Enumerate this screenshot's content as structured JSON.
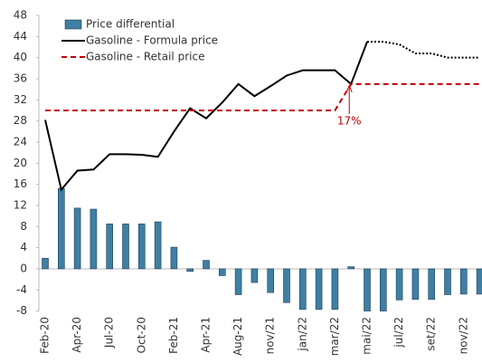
{
  "chart_data": {
    "type": "bar_line",
    "categories": [
      "Feb-20",
      null,
      "Apr-20",
      null,
      "Jul-20",
      null,
      "Oct-20",
      null,
      "Feb-21",
      null,
      "Apr-21",
      null,
      "Aug-21",
      null,
      "nov/21",
      null,
      "jan/22",
      null,
      "mar/22",
      null,
      "mai/22",
      null,
      "jul/22",
      null,
      "set/22",
      null,
      "nov/22",
      null
    ],
    "series": [
      {
        "name": "Price differential",
        "type": "bar",
        "color": "#3f7fa3",
        "values": [
          2,
          15.2,
          11.5,
          11.3,
          8.5,
          8.5,
          8.5,
          8.9,
          4.1,
          -0.5,
          1.6,
          -1.3,
          -4.9,
          -2.6,
          -4.5,
          -6.4,
          -7.7,
          -7.7,
          -7.7,
          0.4,
          -8,
          -8,
          -5.9,
          -5.8,
          -5.8,
          -4.9,
          -4.8,
          -4.8
        ]
      },
      {
        "name": "Gasoline - Formula price",
        "type": "line",
        "color": "#000000",
        "dotted_from": 20,
        "values": [
          28.2,
          15,
          18.6,
          18.8,
          21.7,
          21.7,
          21.6,
          21.2,
          26,
          30.4,
          28.5,
          31.5,
          35,
          32.7,
          34.6,
          36.6,
          37.6,
          37.6,
          37.6,
          35,
          43,
          43,
          42.5,
          40.8,
          40.8,
          40,
          40,
          40
        ]
      },
      {
        "name": "Gasoline - Retail price",
        "type": "line",
        "color": "#c00000",
        "dashed": true,
        "values": [
          30,
          30,
          30,
          30,
          30,
          30,
          30,
          30,
          30,
          30,
          30,
          30,
          30,
          30,
          30,
          30,
          30,
          30,
          30,
          35,
          35,
          35,
          35,
          35,
          35,
          35,
          35,
          35
        ]
      }
    ],
    "annotation": {
      "text": "17%",
      "color": "#c00000",
      "index": 19
    },
    "ylim": [
      -8,
      48
    ],
    "yticks": [
      -8,
      -4,
      0,
      4,
      8,
      12,
      16,
      20,
      24,
      28,
      32,
      36,
      40,
      44,
      48
    ]
  }
}
